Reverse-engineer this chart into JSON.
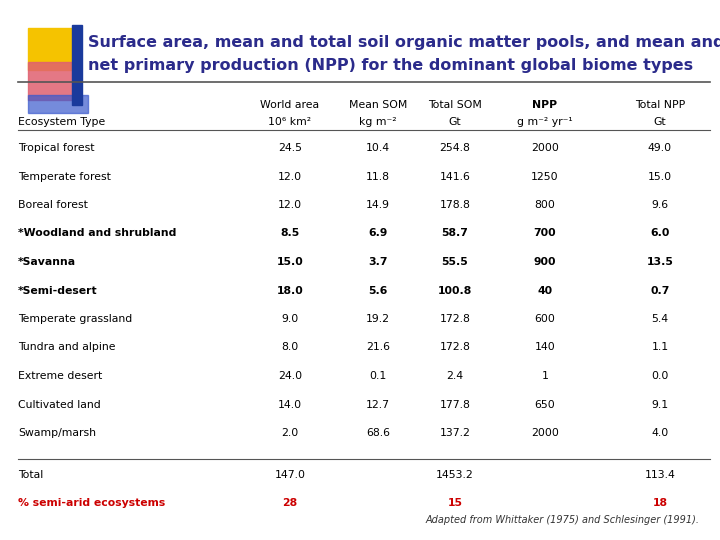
{
  "title_line1": "Surface area, mean and total soil organic matter pools, and mean and global",
  "title_line2": "net primary production (NPP) for the dominant global biome types",
  "title_color": "#2b2b8b",
  "title_fontsize": 11.5,
  "rows": [
    {
      "name": "Tropical forest",
      "bold": false,
      "world_area": "24.5",
      "mean_som": "10.4",
      "total_som": "254.8",
      "npp": "2000",
      "total_npp": "49.0"
    },
    {
      "name": "Temperate forest",
      "bold": false,
      "world_area": "12.0",
      "mean_som": "11.8",
      "total_som": "141.6",
      "npp": "1250",
      "total_npp": "15.0"
    },
    {
      "name": "Boreal forest",
      "bold": false,
      "world_area": "12.0",
      "mean_som": "14.9",
      "total_som": "178.8",
      "npp": "800",
      "total_npp": "9.6"
    },
    {
      "name": "*Woodland and shrubland",
      "bold": true,
      "world_area": "8.5",
      "mean_som": "6.9",
      "total_som": "58.7",
      "npp": "700",
      "total_npp": "6.0"
    },
    {
      "name": "*Savanna",
      "bold": true,
      "world_area": "15.0",
      "mean_som": "3.7",
      "total_som": "55.5",
      "npp": "900",
      "total_npp": "13.5"
    },
    {
      "name": "*Semi-desert",
      "bold": true,
      "world_area": "18.0",
      "mean_som": "5.6",
      "total_som": "100.8",
      "npp": "40",
      "total_npp": "0.7"
    },
    {
      "name": "Temperate grassland",
      "bold": false,
      "world_area": "9.0",
      "mean_som": "19.2",
      "total_som": "172.8",
      "npp": "600",
      "total_npp": "5.4"
    },
    {
      "name": "Tundra and alpine",
      "bold": false,
      "world_area": "8.0",
      "mean_som": "21.6",
      "total_som": "172.8",
      "npp": "140",
      "total_npp": "1.1"
    },
    {
      "name": "Extreme desert",
      "bold": false,
      "world_area": "24.0",
      "mean_som": "0.1",
      "total_som": "2.4",
      "npp": "1",
      "total_npp": "0.0"
    },
    {
      "name": "Cultivated land",
      "bold": false,
      "world_area": "14.0",
      "mean_som": "12.7",
      "total_som": "177.8",
      "npp": "650",
      "total_npp": "9.1"
    },
    {
      "name": "Swamp/marsh",
      "bold": false,
      "world_area": "2.0",
      "mean_som": "68.6",
      "total_som": "137.2",
      "npp": "2000",
      "total_npp": "4.0"
    }
  ],
  "total_row": {
    "name": "Total",
    "world_area": "147.0",
    "total_som": "1453.2",
    "total_npp": "113.4"
  },
  "pct_row": {
    "name": "% semi-arid ecosystems",
    "world_area": "28",
    "total_som": "15",
    "total_npp": "18"
  },
  "citation": "Adapted from Whittaker (1975) and Schlesinger (1991).",
  "bg_color": "#ffffff",
  "text_color": "#000000",
  "pct_color": "#cc0000",
  "deco_blue": "#1a3a9c",
  "deco_yellow": "#f5c300",
  "deco_pink": "#e06070",
  "deco_blue2": "#3a5acd"
}
